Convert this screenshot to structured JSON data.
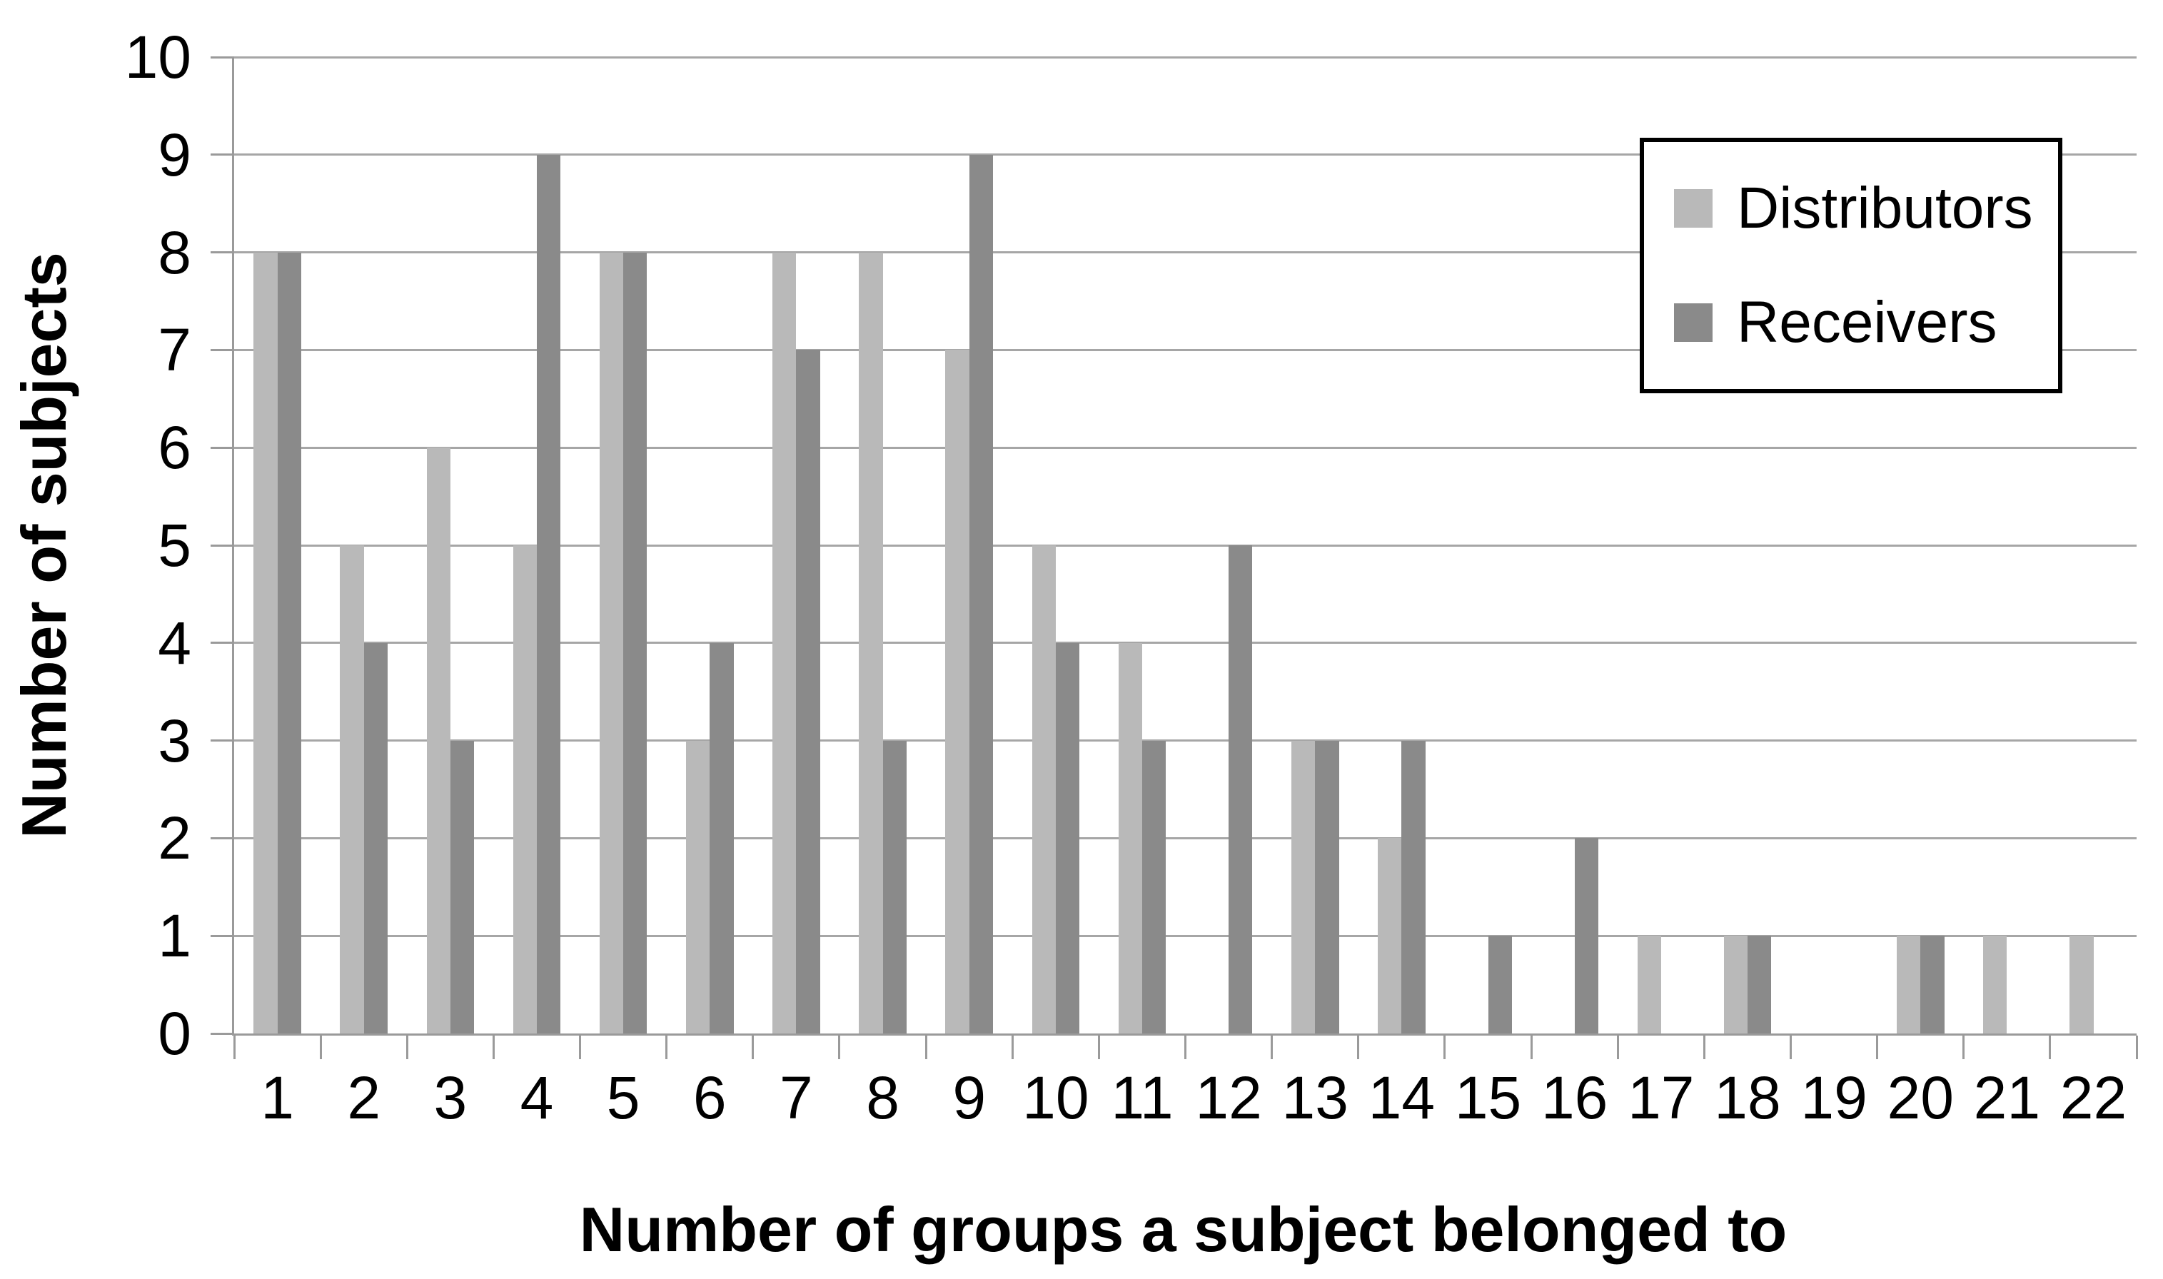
{
  "chart_data": {
    "type": "bar",
    "title": "",
    "xlabel": "Number of groups a subject belonged to",
    "ylabel": "Number of subjects",
    "categories": [
      "1",
      "2",
      "3",
      "4",
      "5",
      "6",
      "7",
      "8",
      "9",
      "10",
      "11",
      "12",
      "13",
      "14",
      "15",
      "16",
      "17",
      "18",
      "19",
      "20",
      "21",
      "22"
    ],
    "ylim": [
      0,
      10
    ],
    "ytick_step": 1,
    "ytick_labels": [
      "0",
      "1",
      "2",
      "3",
      "4",
      "5",
      "6",
      "7",
      "8",
      "9",
      "10"
    ],
    "grid": "horizontal",
    "legend_position": "top-right",
    "series": [
      {
        "name": "Distributors",
        "color": "#b9b9b9",
        "values": [
          8,
          5,
          6,
          5,
          8,
          3,
          8,
          8,
          7,
          5,
          4,
          0,
          3,
          2,
          0,
          0,
          1,
          1,
          0,
          1,
          1,
          1
        ]
      },
      {
        "name": "Receivers",
        "color": "#8a8a8a",
        "values": [
          8,
          4,
          3,
          9,
          8,
          4,
          7,
          3,
          9,
          4,
          3,
          5,
          3,
          3,
          1,
          2,
          0,
          1,
          0,
          1,
          0,
          0
        ]
      }
    ]
  },
  "colors": {
    "background": "#ffffff",
    "gridline": "#a6a6a6",
    "axis": "#9a9a9a",
    "text": "#000000",
    "legend_border": "#000000"
  }
}
